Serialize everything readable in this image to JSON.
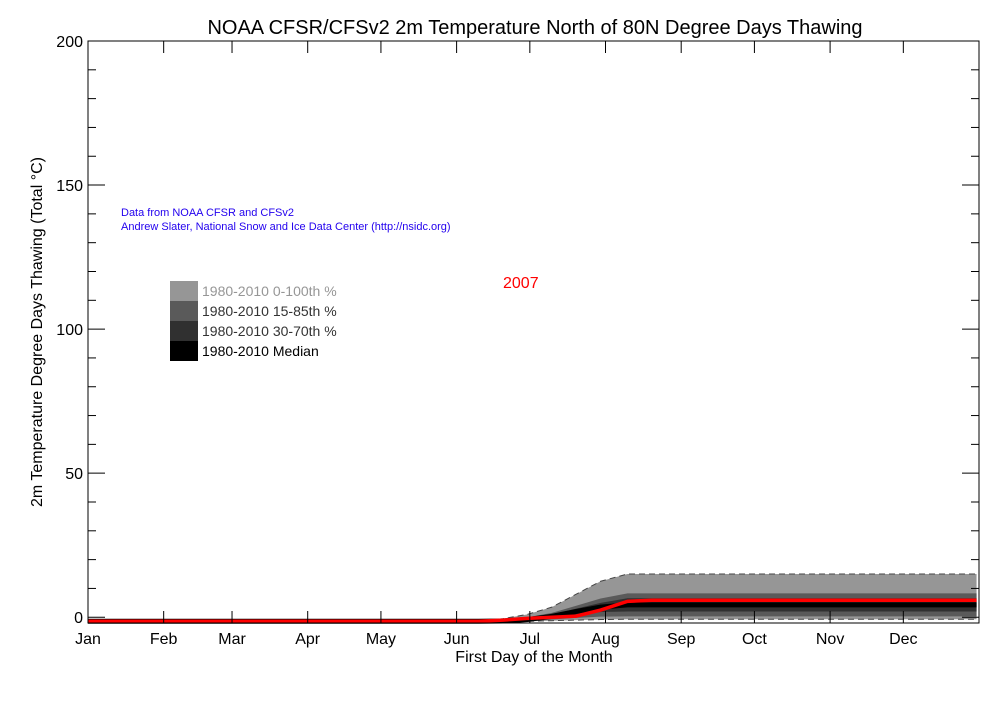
{
  "chart_data": {
    "type": "area",
    "title": "NOAA CFSR/CFSv2 2m Temperature North of 80N Degree Days Thawing",
    "xlabel": "First Day of the Month",
    "ylabel": "2m Temperature Degree Days Thawing (Total °C)",
    "x_tick_labels": [
      "Jan",
      "Feb",
      "Mar",
      "Apr",
      "May",
      "Jun",
      "Jul",
      "Aug",
      "Sep",
      "Oct",
      "Nov",
      "Dec"
    ],
    "y_tick_labels": [
      "0",
      "50",
      "100",
      "150",
      "200"
    ],
    "ylim": [
      -2,
      200
    ],
    "grid": false,
    "legend_placement": "upper-left",
    "annotations": {
      "source_line1": "Data from NOAA CFSR and CFSv2",
      "source_line2": "Andrew Slater, National Snow and Ice Data Center (http://nsidc.org)",
      "year_label": "2007"
    },
    "colors": {
      "range_0_100": "#969696",
      "range_15_85": "#5a5a5a",
      "range_30_70": "#303030",
      "median": "#000000",
      "year_line": "#ff0000",
      "source_text": "#2200ee"
    },
    "legend": [
      {
        "label": "1980-2010 0-100th %",
        "color": "#969696",
        "text_color": "#969696"
      },
      {
        "label": "1980-2010 15-85th %",
        "color": "#5a5a5a",
        "text_color": "#333333"
      },
      {
        "label": "1980-2010 30-70th %",
        "color": "#303030",
        "text_color": "#333333"
      },
      {
        "label": "1980-2010 Median",
        "color": "#000000",
        "text_color": "#000000"
      }
    ],
    "x": [
      "01-01",
      "06-10",
      "06-20",
      "06-30",
      "07-10",
      "07-20",
      "07-30",
      "08-10",
      "08-20",
      "12-31"
    ],
    "series": {
      "min": [
        -1.4,
        -1.4,
        -1.4,
        -1.4,
        -1.2,
        -1.0,
        -0.8,
        -0.7,
        -0.7,
        -0.7
      ],
      "p15": [
        -1.4,
        -1.4,
        -1.4,
        -1.2,
        -0.8,
        -0.2,
        0.2,
        0.3,
        0.3,
        0.3
      ],
      "p30": [
        -1.4,
        -1.4,
        -1.3,
        -1.0,
        -0.3,
        1.0,
        1.8,
        2.0,
        2.0,
        2.0
      ],
      "median": [
        -1.4,
        -1.4,
        -1.3,
        -0.8,
        0.3,
        2.0,
        3.5,
        4.3,
        4.3,
        4.3
      ],
      "p70": [
        -1.4,
        -1.4,
        -1.2,
        -0.5,
        0.8,
        3.0,
        5.0,
        6.6,
        6.6,
        6.6
      ],
      "p85": [
        -1.4,
        -1.4,
        -1.0,
        0.0,
        1.5,
        4.0,
        6.5,
        8.3,
        8.3,
        8.3
      ],
      "max": [
        -1.4,
        -1.4,
        -0.5,
        1.0,
        3.5,
        8.0,
        12.5,
        15.0,
        15.0,
        15.0
      ],
      "year_2007": [
        -1.4,
        -1.4,
        -1.0,
        -0.4,
        0.0,
        0.4,
        2.5,
        5.5,
        5.9,
        5.9
      ]
    }
  }
}
